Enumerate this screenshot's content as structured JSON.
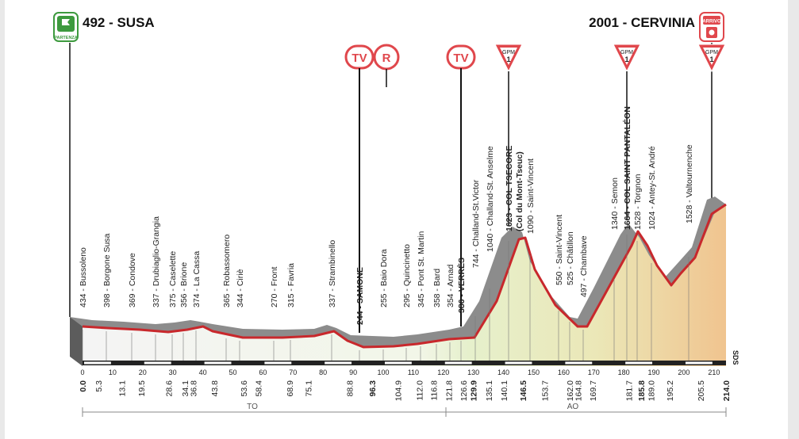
{
  "start": {
    "label": "492 - SUSA",
    "badge": "PARTENZA"
  },
  "finish": {
    "label": "2001 - CERVINIA",
    "badge": "ARRIVO"
  },
  "markers": {
    "tv": "TV",
    "r": "R",
    "gpm": "GPM",
    "gpm_cat": "1"
  },
  "regions": [
    "TO",
    "AO"
  ],
  "sds": "SDS",
  "landmarks": [
    {
      "text": "434 - Bussoleno",
      "bold": false
    },
    {
      "text": "398 - Borgone Susa",
      "bold": false
    },
    {
      "text": "369 - Condove",
      "bold": false
    },
    {
      "text": "337 - Drubiaglio-Grangia",
      "bold": false
    },
    {
      "text": "375 - Caselette",
      "bold": false
    },
    {
      "text": "356 - Brione",
      "bold": false
    },
    {
      "text": "374 - La Cassa",
      "bold": false
    },
    {
      "text": "365 - Robassomero",
      "bold": false
    },
    {
      "text": "344 - Ciriè",
      "bold": false
    },
    {
      "text": "270 - Front",
      "bold": false
    },
    {
      "text": "315 - Favria",
      "bold": false
    },
    {
      "text": "337 - Strambinello",
      "bold": false
    },
    {
      "text": "244 - SAMONE",
      "bold": true
    },
    {
      "text": "255 - Baio Dora",
      "bold": false
    },
    {
      "text": "295 - Quincinetto",
      "bold": false
    },
    {
      "text": "345 - Pont St. Martin",
      "bold": false
    },
    {
      "text": "358 - Bard",
      "bold": false
    },
    {
      "text": "354 - Arnad",
      "bold": false
    },
    {
      "text": "386 - VERRÈS",
      "bold": true
    },
    {
      "text": "744 - Challand-St.Victor",
      "bold": false
    },
    {
      "text": "1040 - Challand-St. Anselme",
      "bold": false
    },
    {
      "text": "1623 - COL TSECORE",
      "bold": true
    },
    {
      "text": "(Col du Mont-Tseuc)",
      "bold": true
    },
    {
      "text": "1090 - Saint-Vincent",
      "bold": false
    },
    {
      "text": "550 - Saint-Vincent",
      "bold": false
    },
    {
      "text": "525 - Châtillon",
      "bold": false
    },
    {
      "text": "497 - Chambave",
      "bold": false
    },
    {
      "text": "1340 - Semon",
      "bold": false
    },
    {
      "text": "1664 - COL SAINT PANTALÉON",
      "bold": true
    },
    {
      "text": "1528 - Torgnon",
      "bold": false
    },
    {
      "text": "1024 - Antey-St. André",
      "bold": false
    },
    {
      "text": "1528 - Valtournenche",
      "bold": false
    }
  ],
  "distances": [
    {
      "text": "0.0",
      "bold": true
    },
    {
      "text": "5.3",
      "bold": false
    },
    {
      "text": "13.1",
      "bold": false
    },
    {
      "text": "19.5",
      "bold": false
    },
    {
      "text": "28.6",
      "bold": false
    },
    {
      "text": "34.1",
      "bold": false
    },
    {
      "text": "36.8",
      "bold": false
    },
    {
      "text": "43.8",
      "bold": false
    },
    {
      "text": "53.6",
      "bold": false
    },
    {
      "text": "58.4",
      "bold": false
    },
    {
      "text": "68.9",
      "bold": false
    },
    {
      "text": "75.1",
      "bold": false
    },
    {
      "text": "88.8",
      "bold": false
    },
    {
      "text": "96.3",
      "bold": true
    },
    {
      "text": "104.9",
      "bold": false
    },
    {
      "text": "112.0",
      "bold": false
    },
    {
      "text": "116.8",
      "bold": false
    },
    {
      "text": "121.8",
      "bold": false
    },
    {
      "text": "126.6",
      "bold": false
    },
    {
      "text": "129.9",
      "bold": true
    },
    {
      "text": "135.1",
      "bold": false
    },
    {
      "text": "140.1",
      "bold": false
    },
    {
      "text": "146.5",
      "bold": true
    },
    {
      "text": "153.7",
      "bold": false
    },
    {
      "text": "162.0",
      "bold": false
    },
    {
      "text": "164.8",
      "bold": false
    },
    {
      "text": "169.7",
      "bold": false
    },
    {
      "text": "181.7",
      "bold": false
    },
    {
      "text": "185.8",
      "bold": true
    },
    {
      "text": "189.0",
      "bold": false
    },
    {
      "text": "195.2",
      "bold": false
    },
    {
      "text": "205.5",
      "bold": false
    },
    {
      "text": "214.0",
      "bold": true
    }
  ],
  "axis_ticks": [
    "0",
    "10",
    "20",
    "30",
    "40",
    "50",
    "60",
    "70",
    "80",
    "90",
    "100",
    "110",
    "120",
    "130",
    "140",
    "150",
    "160",
    "170",
    "180",
    "190",
    "200",
    "210"
  ],
  "colors": {
    "profile_line": "#c8282c",
    "profile_gray": "#8a8a8a",
    "badge_red": "#e0474c",
    "start_green": "#3d9a3e",
    "fill_green": "#dfecc3",
    "fill_orange": "#f2c796"
  }
}
